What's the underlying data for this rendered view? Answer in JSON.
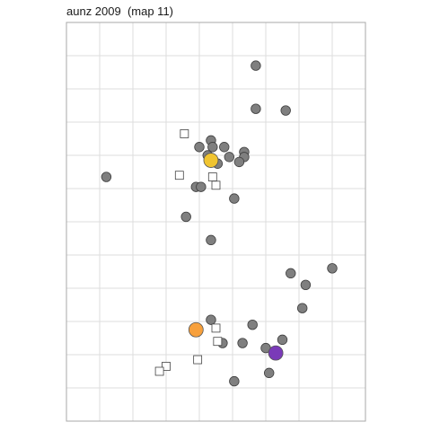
{
  "chart_data": {
    "type": "scatter",
    "title": "aunz 2009  (map 11)",
    "xlabel": "",
    "ylabel": "",
    "xlim": [
      0,
      9
    ],
    "ylim": [
      0,
      12
    ],
    "grid": true,
    "legend": "none",
    "series": [
      {
        "marker": "circle",
        "color": "#7f7f7f",
        "points": [
          [
            5.7,
            10.7
          ],
          [
            5.7,
            9.4
          ],
          [
            6.6,
            9.35
          ],
          [
            4.35,
            8.45
          ],
          [
            4.0,
            8.25
          ],
          [
            4.4,
            8.25
          ],
          [
            4.75,
            8.25
          ],
          [
            5.35,
            8.1
          ],
          [
            4.25,
            8.0
          ],
          [
            4.9,
            7.95
          ],
          [
            5.35,
            7.95
          ],
          [
            5.2,
            7.8
          ],
          [
            4.55,
            7.75
          ],
          [
            1.2,
            7.35
          ],
          [
            3.9,
            7.05
          ],
          [
            4.05,
            7.05
          ],
          [
            5.05,
            6.7
          ],
          [
            3.6,
            6.15
          ],
          [
            4.35,
            5.45
          ],
          [
            8.0,
            4.6
          ],
          [
            6.75,
            4.45
          ],
          [
            7.2,
            4.1
          ],
          [
            7.1,
            3.4
          ],
          [
            4.35,
            3.05
          ],
          [
            5.6,
            2.9
          ],
          [
            4.7,
            2.35
          ],
          [
            5.3,
            2.35
          ],
          [
            6.5,
            2.45
          ],
          [
            6.0,
            2.2
          ],
          [
            6.1,
            1.45
          ],
          [
            5.05,
            1.2
          ]
        ]
      },
      {
        "marker": "square",
        "color": "#ffffff",
        "points": [
          [
            3.55,
            8.65
          ],
          [
            3.4,
            7.4
          ],
          [
            4.4,
            7.35
          ],
          [
            4.5,
            7.1
          ],
          [
            4.5,
            2.8
          ],
          [
            4.55,
            2.4
          ],
          [
            3.95,
            1.85
          ],
          [
            3.0,
            1.65
          ],
          [
            2.8,
            1.5
          ]
        ]
      },
      {
        "marker": "circle-large",
        "color": "#f0c430",
        "points": [
          [
            4.35,
            7.85
          ]
        ]
      },
      {
        "marker": "circle-large",
        "color": "#f7a03c",
        "points": [
          [
            3.9,
            2.75
          ]
        ]
      },
      {
        "marker": "circle-large",
        "color": "#7a3ab8",
        "points": [
          [
            6.3,
            2.05
          ]
        ]
      }
    ]
  }
}
